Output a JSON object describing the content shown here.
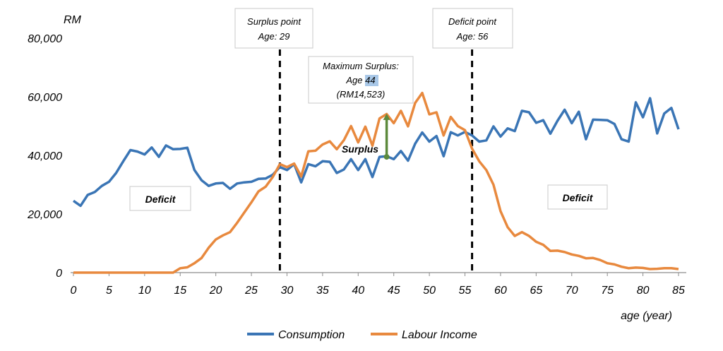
{
  "chart_data": {
    "type": "line",
    "ylabel": "RM",
    "xlabel": "age (year)",
    "xlim": [
      0,
      86
    ],
    "ylim": [
      0,
      80000
    ],
    "xticks": [
      0,
      5,
      10,
      15,
      20,
      25,
      30,
      35,
      40,
      45,
      50,
      55,
      60,
      65,
      70,
      75,
      80,
      85
    ],
    "yticks": [
      0,
      20000,
      40000,
      60000,
      80000
    ],
    "ytick_labels": [
      "0",
      "20,000",
      "40,000",
      "60,000",
      "80,000"
    ],
    "grid": false,
    "legend": "bottom",
    "colors": {
      "consumption": "#3a75b5",
      "labour": "#e8893e",
      "surplus_marker": "#5c8a3c"
    },
    "series": [
      {
        "name": "Consumption",
        "x": [
          0,
          1,
          2,
          3,
          4,
          5,
          6,
          7,
          8,
          9,
          10,
          11,
          12,
          13,
          14,
          15,
          16,
          17,
          18,
          19,
          20,
          21,
          22,
          23,
          24,
          25,
          26,
          27,
          28,
          29,
          30,
          31,
          32,
          33,
          34,
          35,
          36,
          37,
          38,
          39,
          40,
          41,
          42,
          43,
          44,
          45,
          46,
          47,
          48,
          49,
          50,
          51,
          52,
          53,
          54,
          55,
          56,
          57,
          58,
          59,
          60,
          61,
          62,
          63,
          64,
          65,
          66,
          67,
          68,
          69,
          70,
          71,
          72,
          73,
          74,
          75,
          76,
          77,
          78,
          79,
          80,
          81,
          82,
          83,
          84,
          85
        ],
        "values": [
          24500,
          22800,
          26500,
          27500,
          29600,
          31000,
          34000,
          38000,
          41800,
          41300,
          40300,
          42700,
          39500,
          43400,
          42100,
          42200,
          42600,
          35000,
          31500,
          29600,
          30400,
          30600,
          28600,
          30400,
          30800,
          31000,
          32000,
          32100,
          33400,
          36000,
          35000,
          37000,
          30800,
          37000,
          36300,
          38000,
          37800,
          34000,
          35200,
          38700,
          35000,
          38700,
          32600,
          39500,
          39700,
          38700,
          41500,
          38200,
          44000,
          47800,
          44700,
          46600,
          39700,
          47900,
          46800,
          48000,
          46800,
          44700,
          45100,
          49900,
          46400,
          49200,
          48300,
          55200,
          54700,
          51100,
          52000,
          47400,
          51800,
          55600,
          51000,
          54900,
          45500,
          52200,
          52100,
          52000,
          50700,
          45500,
          44700,
          58100,
          53000,
          59500,
          47500,
          54300,
          56200,
          48900
        ]
      },
      {
        "name": "Labour Income",
        "x": [
          0,
          1,
          2,
          3,
          4,
          5,
          6,
          7,
          8,
          9,
          10,
          11,
          12,
          13,
          14,
          15,
          16,
          17,
          18,
          19,
          20,
          21,
          22,
          23,
          24,
          25,
          26,
          27,
          28,
          29,
          30,
          31,
          32,
          33,
          34,
          35,
          36,
          37,
          38,
          39,
          40,
          41,
          42,
          43,
          44,
          45,
          46,
          47,
          48,
          49,
          50,
          51,
          52,
          53,
          54,
          55,
          56,
          57,
          58,
          59,
          60,
          61,
          62,
          63,
          64,
          65,
          66,
          67,
          68,
          69,
          70,
          71,
          72,
          73,
          74,
          75,
          76,
          77,
          78,
          79,
          80,
          81,
          82,
          83,
          84,
          85
        ],
        "values": [
          0,
          0,
          0,
          0,
          0,
          0,
          0,
          0,
          0,
          0,
          0,
          0,
          0,
          0,
          0,
          1500,
          1800,
          3200,
          5000,
          8500,
          11300,
          12700,
          13800,
          17000,
          20500,
          24000,
          27700,
          29300,
          32600,
          37000,
          36000,
          37200,
          32800,
          41400,
          41600,
          43700,
          44800,
          42100,
          45200,
          50000,
          44400,
          49800,
          43300,
          52600,
          54100,
          51000,
          55200,
          49900,
          57900,
          61300,
          54000,
          54700,
          46800,
          53100,
          50000,
          48600,
          42300,
          38000,
          35000,
          30000,
          21000,
          15500,
          12500,
          13800,
          12500,
          10500,
          9500,
          7400,
          7500,
          7000,
          6200,
          5700,
          4900,
          5000,
          4300,
          3200,
          2800,
          2000,
          1500,
          1700,
          1600,
          1200,
          1300,
          1500,
          1500,
          1200
        ]
      }
    ],
    "annotations": {
      "surplus_point": {
        "line1": "Surplus point",
        "line2": "Age: 29",
        "age": 29
      },
      "deficit_point": {
        "line1": "Deficit point",
        "line2": "Age: 56",
        "age": 56
      },
      "max_surplus": {
        "line1": "Maximum Surplus:",
        "line2_prefix": "Age ",
        "line2_highlight": "44",
        "line3": "(RM14,523)",
        "age": 44,
        "low": 39500,
        "high": 54000
      },
      "surplus_label": "Surplus",
      "deficit_left": "Deficit",
      "deficit_right": "Deficit"
    }
  }
}
